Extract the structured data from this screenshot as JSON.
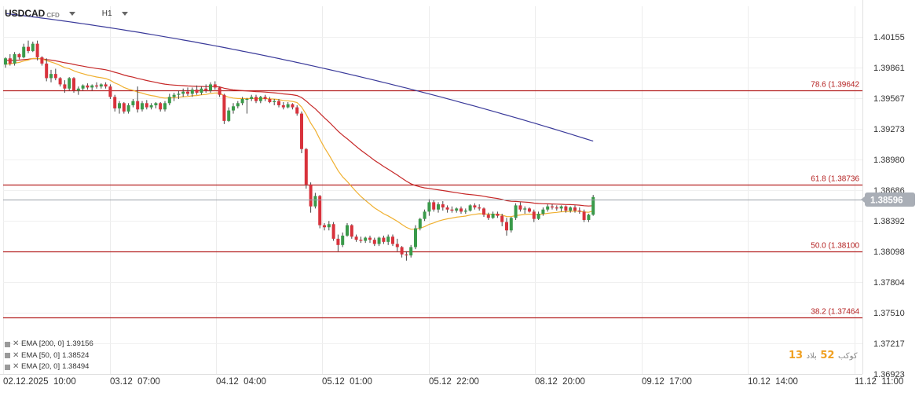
{
  "header": {
    "symbol": "USDCAD",
    "symbol_tag": "CFD",
    "timeframe": "H1"
  },
  "legend": [
    {
      "label": "EMA [200, 0]",
      "value": "1.39156",
      "color": "#3a3a9a"
    },
    {
      "label": "EMA [50, 0]",
      "value": "1.38524",
      "color": "#c62828"
    },
    {
      "label": "EMA [20, 0]",
      "value": "1.38494",
      "color": "#f0b030"
    }
  ],
  "watermark": {
    "a": "13",
    "b": "كوكب",
    "c": "52",
    "d": "ﺑﻼﺩ"
  },
  "chart_data": {
    "type": "candlestick",
    "y_ticks": [
      "1.40155",
      "1.39861",
      "1.39567",
      "1.39273",
      "1.38980",
      "1.38686",
      "1.38392",
      "1.38098",
      "1.37804",
      "1.37510",
      "1.37217",
      "1.36923"
    ],
    "x_ticks": [
      "02.12.2025  10:00",
      "03.12  07:00",
      "04.12  04:00",
      "05.12  01:00",
      "05.12  22:00",
      "08.12  20:00",
      "09.12  17:00",
      "10.12  14:00",
      "11.12  11:00"
    ],
    "ylim": [
      1.36923,
      1.40449
    ],
    "current_price": "1.38596",
    "current_price_value": 1.38596,
    "fib_levels": [
      {
        "label": "78.6 (1.39642",
        "value": 1.39642
      },
      {
        "label": "61.8 (1.38736",
        "value": 1.38736
      },
      {
        "label": "50.0 (1.38100",
        "value": 1.381
      },
      {
        "label": "38.2 (1.37464",
        "value": 1.37464
      }
    ],
    "colors": {
      "up": "#3a9a4a",
      "down": "#d8323c",
      "fib": "#b42020",
      "ema200": "#3a3a9a",
      "ema50": "#c62828",
      "ema20": "#f0b030",
      "price_tag": "#a9aeb6"
    },
    "candles": [
      [
        1.3989,
        1.3996,
        1.3986,
        1.3995
      ],
      [
        1.3995,
        1.3999,
        1.3988,
        1.399
      ],
      [
        1.399,
        1.4001,
        1.3988,
        1.3999
      ],
      [
        1.3999,
        1.4,
        1.3994,
        1.3996
      ],
      [
        1.3996,
        1.4009,
        1.3995,
        1.4006
      ],
      [
        1.4006,
        1.4012,
        1.4,
        1.4002
      ],
      [
        1.4002,
        1.4011,
        1.4001,
        1.4009
      ],
      [
        1.4009,
        1.4012,
        1.3993,
        1.3996
      ],
      [
        1.3996,
        1.3997,
        1.3988,
        1.399
      ],
      [
        1.399,
        1.3995,
        1.3973,
        1.3976
      ],
      [
        1.3976,
        1.3984,
        1.3972,
        1.398
      ],
      [
        1.398,
        1.3985,
        1.3974,
        1.3976
      ],
      [
        1.3976,
        1.3977,
        1.3968,
        1.397
      ],
      [
        1.397,
        1.3974,
        1.3962,
        1.3966
      ],
      [
        1.3966,
        1.3977,
        1.3964,
        1.3976
      ],
      [
        1.3976,
        1.3977,
        1.3962,
        1.3964
      ],
      [
        1.3964,
        1.3968,
        1.396,
        1.3966
      ],
      [
        1.3966,
        1.397,
        1.3964,
        1.3969
      ],
      [
        1.3969,
        1.3971,
        1.3965,
        1.3967
      ],
      [
        1.3967,
        1.397,
        1.3964,
        1.3969
      ],
      [
        1.3969,
        1.3972,
        1.3966,
        1.3968
      ],
      [
        1.3968,
        1.3971,
        1.3966,
        1.397
      ],
      [
        1.397,
        1.3972,
        1.3966,
        1.3968
      ],
      [
        1.3968,
        1.397,
        1.3956,
        1.3958
      ],
      [
        1.3958,
        1.396,
        1.3944,
        1.3947
      ],
      [
        1.3947,
        1.3954,
        1.3942,
        1.3952
      ],
      [
        1.3952,
        1.3953,
        1.3942,
        1.3944
      ],
      [
        1.3944,
        1.3952,
        1.3942,
        1.395
      ],
      [
        1.395,
        1.3956,
        1.3948,
        1.3954
      ],
      [
        1.3954,
        1.3968,
        1.3943,
        1.3946
      ],
      [
        1.3946,
        1.3954,
        1.3944,
        1.3952
      ],
      [
        1.3952,
        1.3955,
        1.3946,
        1.3948
      ],
      [
        1.3948,
        1.3952,
        1.3946,
        1.395
      ],
      [
        1.395,
        1.3953,
        1.3947,
        1.3952
      ],
      [
        1.3952,
        1.3953,
        1.3944,
        1.3946
      ],
      [
        1.3946,
        1.3954,
        1.3944,
        1.3952
      ],
      [
        1.3952,
        1.3961,
        1.395,
        1.3958
      ],
      [
        1.3958,
        1.3962,
        1.3954,
        1.396
      ],
      [
        1.396,
        1.3964,
        1.3956,
        1.3961
      ],
      [
        1.3961,
        1.3966,
        1.3958,
        1.3963
      ],
      [
        1.3963,
        1.3967,
        1.3959,
        1.3961
      ],
      [
        1.3961,
        1.3967,
        1.3958,
        1.3965
      ],
      [
        1.3965,
        1.3969,
        1.396,
        1.3962
      ],
      [
        1.3962,
        1.3968,
        1.396,
        1.3966
      ],
      [
        1.3966,
        1.397,
        1.3962,
        1.3964
      ],
      [
        1.3964,
        1.3972,
        1.3962,
        1.397
      ],
      [
        1.397,
        1.3973,
        1.3965,
        1.3967
      ],
      [
        1.3967,
        1.3968,
        1.3958,
        1.396
      ],
      [
        1.396,
        1.3961,
        1.3932,
        1.3935
      ],
      [
        1.3935,
        1.3948,
        1.3934,
        1.3945
      ],
      [
        1.3945,
        1.3952,
        1.3942,
        1.3949
      ],
      [
        1.3949,
        1.3954,
        1.3947,
        1.3952
      ],
      [
        1.3952,
        1.3958,
        1.395,
        1.3956
      ],
      [
        1.3956,
        1.3957,
        1.3942,
        1.3956
      ],
      [
        1.3956,
        1.396,
        1.3954,
        1.3958
      ],
      [
        1.3958,
        1.396,
        1.3952,
        1.3954
      ],
      [
        1.3954,
        1.3959,
        1.3952,
        1.3958
      ],
      [
        1.3958,
        1.396,
        1.3954,
        1.3956
      ],
      [
        1.3956,
        1.3958,
        1.3952,
        1.3953
      ],
      [
        1.3953,
        1.3956,
        1.395,
        1.3954
      ],
      [
        1.3954,
        1.3956,
        1.3948,
        1.395
      ],
      [
        1.395,
        1.3953,
        1.3946,
        1.3948
      ],
      [
        1.3948,
        1.3953,
        1.3947,
        1.3951
      ],
      [
        1.3951,
        1.3952,
        1.3946,
        1.3948
      ],
      [
        1.3948,
        1.395,
        1.394,
        1.3942
      ],
      [
        1.3942,
        1.3944,
        1.3904,
        1.3908
      ],
      [
        1.3908,
        1.3909,
        1.387,
        1.3874
      ],
      [
        1.3874,
        1.3876,
        1.3847,
        1.3853
      ],
      [
        1.3853,
        1.3866,
        1.3851,
        1.3863
      ],
      [
        1.3863,
        1.3864,
        1.3832,
        1.3835
      ],
      [
        1.3835,
        1.3837,
        1.383,
        1.3833
      ],
      [
        1.3833,
        1.3839,
        1.383,
        1.3836
      ],
      [
        1.3836,
        1.3838,
        1.382,
        1.3822
      ],
      [
        1.3822,
        1.3826,
        1.381,
        1.3816
      ],
      [
        1.3816,
        1.3828,
        1.3814,
        1.3825
      ],
      [
        1.3825,
        1.3837,
        1.3824,
        1.3835
      ],
      [
        1.3835,
        1.3836,
        1.3822,
        1.3824
      ],
      [
        1.3824,
        1.3826,
        1.3819,
        1.3821
      ],
      [
        1.3821,
        1.3824,
        1.3818,
        1.382
      ],
      [
        1.382,
        1.3824,
        1.3818,
        1.3823
      ],
      [
        1.3823,
        1.3825,
        1.3818,
        1.3821
      ],
      [
        1.3821,
        1.3823,
        1.3815,
        1.3817
      ],
      [
        1.3817,
        1.3824,
        1.3815,
        1.3823
      ],
      [
        1.3823,
        1.3825,
        1.3817,
        1.3819
      ],
      [
        1.3819,
        1.3826,
        1.3816,
        1.3824
      ],
      [
        1.3824,
        1.3826,
        1.3815,
        1.3817
      ],
      [
        1.3817,
        1.3822,
        1.381,
        1.3814
      ],
      [
        1.3814,
        1.3815,
        1.3804,
        1.3807
      ],
      [
        1.3807,
        1.381,
        1.3801,
        1.3806
      ],
      [
        1.3806,
        1.3816,
        1.3804,
        1.3814
      ],
      [
        1.3814,
        1.3835,
        1.3812,
        1.3832
      ],
      [
        1.3832,
        1.3842,
        1.383,
        1.3841
      ],
      [
        1.3841,
        1.385,
        1.3839,
        1.3848
      ],
      [
        1.3848,
        1.386,
        1.3844,
        1.3857
      ],
      [
        1.3857,
        1.3859,
        1.3848,
        1.385
      ],
      [
        1.385,
        1.3857,
        1.3847,
        1.3855
      ],
      [
        1.3855,
        1.3858,
        1.3849,
        1.3852
      ],
      [
        1.3852,
        1.3854,
        1.3847,
        1.385
      ],
      [
        1.385,
        1.3853,
        1.3847,
        1.3849
      ],
      [
        1.3849,
        1.3852,
        1.3847,
        1.3851
      ],
      [
        1.3851,
        1.3853,
        1.3846,
        1.3848
      ],
      [
        1.3848,
        1.3851,
        1.3846,
        1.3849
      ],
      [
        1.3849,
        1.3855,
        1.3848,
        1.3854
      ],
      [
        1.3854,
        1.3856,
        1.385,
        1.3852
      ],
      [
        1.3852,
        1.3855,
        1.3849,
        1.3851
      ],
      [
        1.3851,
        1.3852,
        1.3843,
        1.3845
      ],
      [
        1.3845,
        1.3847,
        1.384,
        1.3842
      ],
      [
        1.3842,
        1.3848,
        1.3841,
        1.3846
      ],
      [
        1.3846,
        1.3848,
        1.3842,
        1.3844
      ],
      [
        1.3844,
        1.3846,
        1.3834,
        1.3838
      ],
      [
        1.3838,
        1.3842,
        1.3825,
        1.383
      ],
      [
        1.383,
        1.3843,
        1.3828,
        1.3842
      ],
      [
        1.3842,
        1.3856,
        1.384,
        1.3854
      ],
      [
        1.3854,
        1.3857,
        1.3848,
        1.385
      ],
      [
        1.385,
        1.3853,
        1.3846,
        1.3851
      ],
      [
        1.3851,
        1.3852,
        1.3847,
        1.3848
      ],
      [
        1.3848,
        1.385,
        1.3838,
        1.3841
      ],
      [
        1.3841,
        1.3848,
        1.384,
        1.3846
      ],
      [
        1.3846,
        1.3852,
        1.3844,
        1.385
      ],
      [
        1.385,
        1.3855,
        1.3848,
        1.3853
      ],
      [
        1.3853,
        1.3855,
        1.385,
        1.3852
      ],
      [
        1.3852,
        1.3854,
        1.3849,
        1.3851
      ],
      [
        1.3851,
        1.3854,
        1.3848,
        1.3853
      ],
      [
        1.3853,
        1.3854,
        1.3847,
        1.3849
      ],
      [
        1.3849,
        1.3853,
        1.3847,
        1.3852
      ],
      [
        1.3852,
        1.3854,
        1.3847,
        1.3849
      ],
      [
        1.3849,
        1.3852,
        1.3846,
        1.3848
      ],
      [
        1.3848,
        1.385,
        1.3838,
        1.384
      ],
      [
        1.384,
        1.3846,
        1.3838,
        1.3845
      ],
      [
        1.3845,
        1.3864,
        1.3844,
        1.3862
      ]
    ]
  }
}
